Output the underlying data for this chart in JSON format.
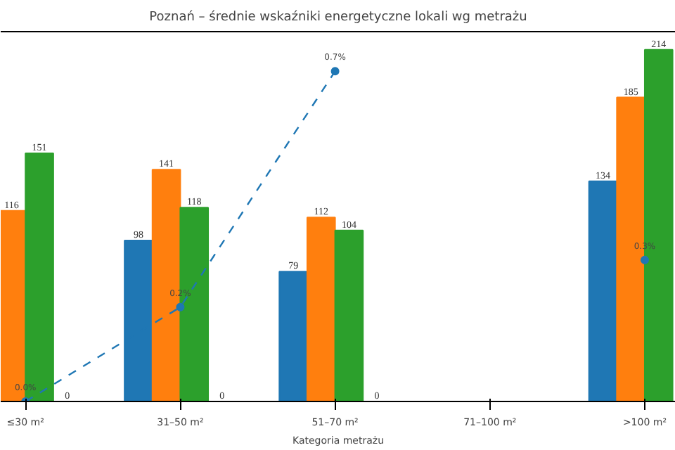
{
  "chart_data": {
    "type": "bar",
    "title": "Poznań – średnie wskaźniki energetyczne lokali wg metrażu",
    "xlabel": "Kategoria metrażu",
    "categories": [
      "≤30 m²",
      "31–50 m²",
      "51–70 m²",
      "71–100 m²",
      ">100 m²"
    ],
    "series": [
      {
        "color": "#1f77b4",
        "values": [
          null,
          98,
          79,
          null,
          134
        ]
      },
      {
        "color": "#ff7f0e",
        "values": [
          116,
          141,
          112,
          null,
          185
        ]
      },
      {
        "color": "#2ca02c",
        "values": [
          151,
          118,
          104,
          null,
          214
        ]
      },
      {
        "color": "#d62728",
        "values": [
          0,
          0,
          0,
          null,
          null
        ]
      },
      {
        "type": "line",
        "axis": "y2",
        "color": "#1f77b4",
        "marker": "circle",
        "line_style": "dashed",
        "values": [
          0.0,
          0.2,
          0.7,
          null,
          0.3
        ],
        "value_labels": [
          "0.0%",
          "0.2%",
          "0.7%",
          null,
          "0.3%"
        ]
      }
    ],
    "ylim": [
      0,
      225
    ],
    "data_labels": true,
    "tick_labels": "x",
    "grid": false
  }
}
